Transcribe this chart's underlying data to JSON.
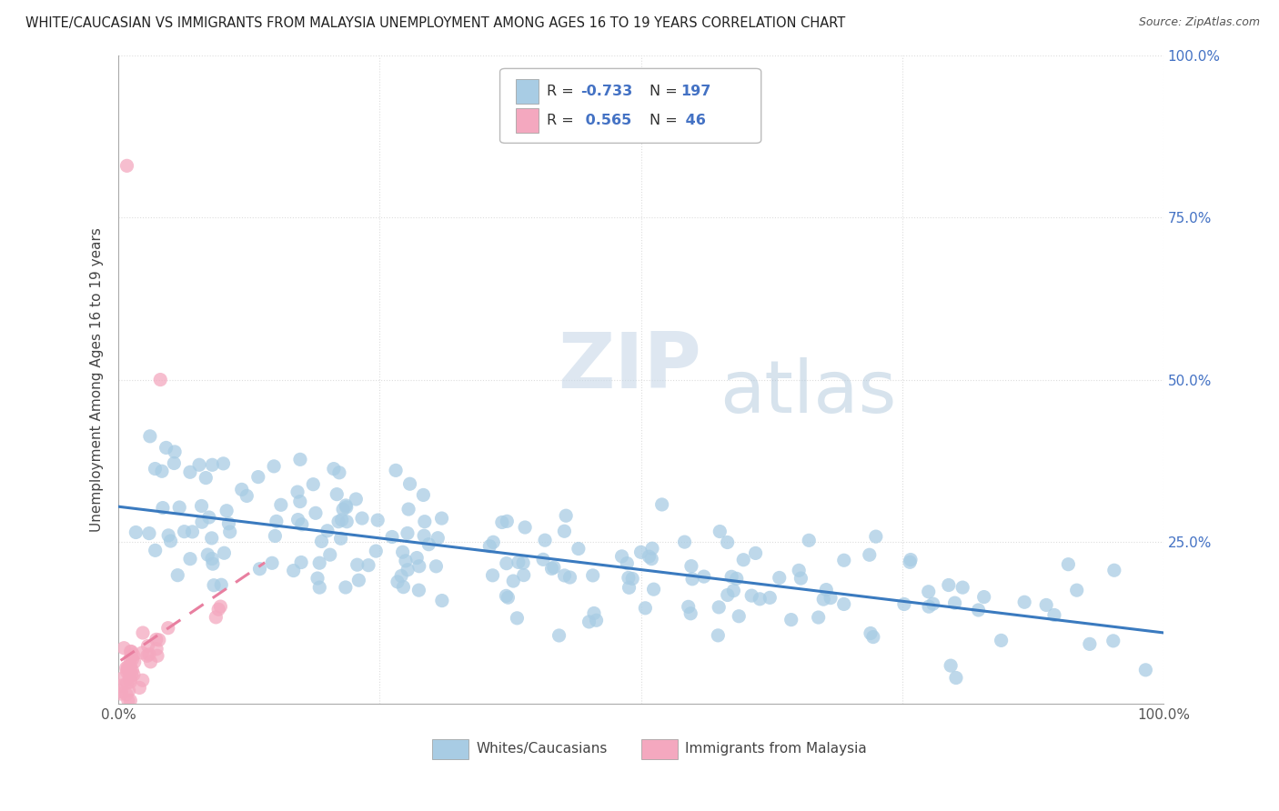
{
  "title": "WHITE/CAUCASIAN VS IMMIGRANTS FROM MALAYSIA UNEMPLOYMENT AMONG AGES 16 TO 19 YEARS CORRELATION CHART",
  "source": "Source: ZipAtlas.com",
  "ylabel": "Unemployment Among Ages 16 to 19 years",
  "xlim": [
    0,
    1
  ],
  "ylim": [
    0,
    1
  ],
  "blue_R": "-0.733",
  "blue_N": "197",
  "pink_R": "0.565",
  "pink_N": "46",
  "blue_color": "#a8cce4",
  "pink_color": "#f4a8bf",
  "blue_line_color": "#3a7abf",
  "pink_line_color": "#e87fa0",
  "watermark_zip": "ZIP",
  "watermark_atlas": "atlas",
  "legend_labels": [
    "Whites/Caucasians",
    "Immigrants from Malaysia"
  ],
  "right_tick_color": "#4472c4",
  "grid_color": "#dddddd",
  "title_fontsize": 10.5,
  "source_fontsize": 9,
  "tick_fontsize": 11
}
